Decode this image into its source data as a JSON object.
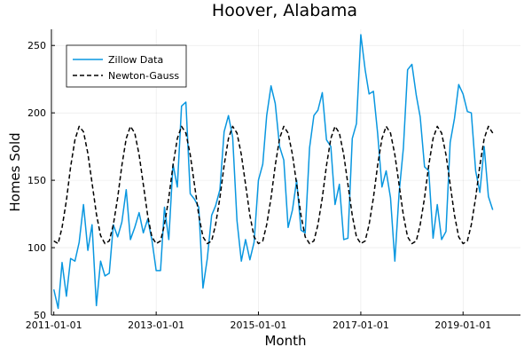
{
  "chart_data": {
    "type": "line",
    "title": "Hoover, Alabama",
    "xlabel": "Month",
    "ylabel": "Homes Sold",
    "x_start": "2011-01-01",
    "x_step": "month",
    "xlim": [
      "2010-12-15",
      "2020-02-15"
    ],
    "ylim": [
      50,
      262
    ],
    "x_ticks": [
      {
        "date": "2011-01-01",
        "label": "2011-01-01"
      },
      {
        "date": "2013-01-01",
        "label": "2013-01-01"
      },
      {
        "date": "2015-01-01",
        "label": "2015-01-01"
      },
      {
        "date": "2017-01-01",
        "label": "2017-01-01"
      },
      {
        "date": "2019-01-01",
        "label": "2019-01-01"
      }
    ],
    "y_ticks": [
      50,
      100,
      150,
      200,
      250
    ],
    "grid": true,
    "legend_position": "top-left",
    "series": [
      {
        "name": "Zillow Data",
        "color": "#0997e0",
        "style": "solid",
        "values": [
          69,
          55,
          89,
          64,
          92,
          90,
          104,
          132,
          98,
          117,
          57,
          90,
          79,
          81,
          117,
          108,
          119,
          143,
          106,
          115,
          126,
          111,
          121,
          106,
          83,
          83,
          130,
          106,
          162,
          145,
          205,
          208,
          140,
          136,
          130,
          70,
          92,
          124,
          131,
          143,
          186,
          198,
          182,
          120,
          90,
          106,
          91,
          104,
          150,
          162,
          198,
          220,
          207,
          175,
          165,
          115,
          128,
          150,
          113,
          111,
          174,
          198,
          202,
          215,
          180,
          175,
          132,
          147,
          106,
          107,
          181,
          192,
          258,
          232,
          214,
          216,
          185,
          145,
          157,
          137,
          90,
          140,
          174,
          232,
          236,
          213,
          197,
          160,
          157,
          107,
          132,
          106,
          112,
          178,
          196,
          221,
          214,
          201,
          200,
          157,
          141,
          175,
          138,
          128
        ],
        "legend_label": "Zillow Data"
      },
      {
        "name": "Newton-Gauss",
        "color": "#000000",
        "style": "dashed",
        "values": [
          105,
          103,
          115,
          135,
          160,
          180,
          190,
          186,
          170,
          148,
          125,
          109,
          103,
          105,
          117,
          137,
          161,
          181,
          190,
          185,
          169,
          147,
          124,
          108,
          103,
          105,
          117,
          137,
          161,
          181,
          190,
          185,
          169,
          147,
          124,
          108,
          103,
          105,
          117,
          137,
          161,
          181,
          190,
          185,
          169,
          147,
          124,
          108,
          103,
          105,
          117,
          137,
          161,
          181,
          190,
          185,
          169,
          147,
          124,
          108,
          103,
          105,
          117,
          137,
          161,
          181,
          190,
          185,
          169,
          147,
          124,
          108,
          103,
          105,
          117,
          137,
          161,
          181,
          190,
          185,
          169,
          147,
          124,
          108,
          103,
          105,
          117,
          137,
          161,
          181,
          190,
          185,
          169,
          147,
          124,
          108,
          103,
          105,
          117,
          137,
          161,
          181,
          190,
          185
        ],
        "legend_label": "Newton-Gauss"
      }
    ]
  }
}
